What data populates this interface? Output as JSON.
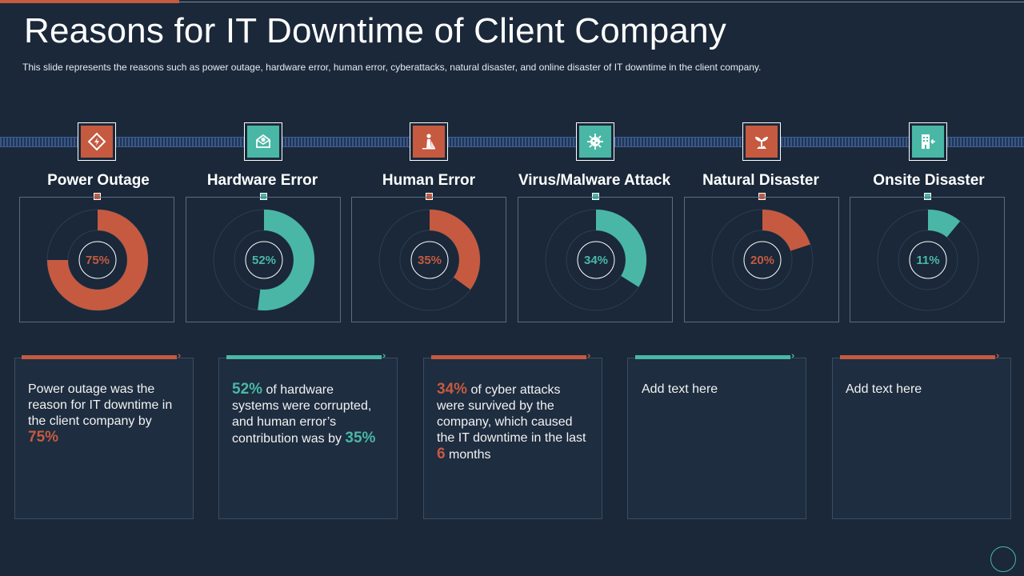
{
  "title": "Reasons for IT Downtime of Client Company",
  "subtitle": "This slide represents the reasons such as power outage, hardware  error, human error, cyberattacks, natural disaster, and online disaster of IT downtime in the client company.",
  "colors": {
    "orange": "#c55a40",
    "teal": "#4ab7a6",
    "background": "#1a2839"
  },
  "categories": [
    {
      "name": "Power Outage",
      "percent": 75,
      "label": "75%",
      "color": "#c55a40",
      "icon": "power-outage-icon"
    },
    {
      "name": "Hardware Error",
      "percent": 52,
      "label": "52%",
      "color": "#4ab7a6",
      "icon": "hardware-error-icon"
    },
    {
      "name": "Human Error",
      "percent": 35,
      "label": "35%",
      "color": "#c55a40",
      "icon": "human-error-icon"
    },
    {
      "name": "Virus/Malware Attack",
      "percent": 34,
      "label": "34%",
      "color": "#4ab7a6",
      "icon": "virus-icon"
    },
    {
      "name": "Natural Disaster",
      "percent": 20,
      "label": "20%",
      "color": "#c55a40",
      "icon": "natural-disaster-icon"
    },
    {
      "name": "Onsite Disaster",
      "percent": 11,
      "label": "11%",
      "color": "#4ab7a6",
      "icon": "onsite-disaster-icon"
    }
  ],
  "texts": [
    {
      "pre": "Power outage was the reason for IT downtime in the client company by ",
      "highlight": "75%",
      "post": ""
    },
    {
      "highlight": "52%",
      "mid": " of hardware systems were corrupted, and human error’s contribution was by ",
      "highlight2": "35%"
    },
    {
      "highlight": "34%",
      "mid": " of cyber attacks were survived by the company, which caused the IT downtime in the last ",
      "highlight2": "6",
      "post": " months"
    },
    {
      "text": "Add text here"
    },
    {
      "text": "Add text here"
    }
  ]
}
